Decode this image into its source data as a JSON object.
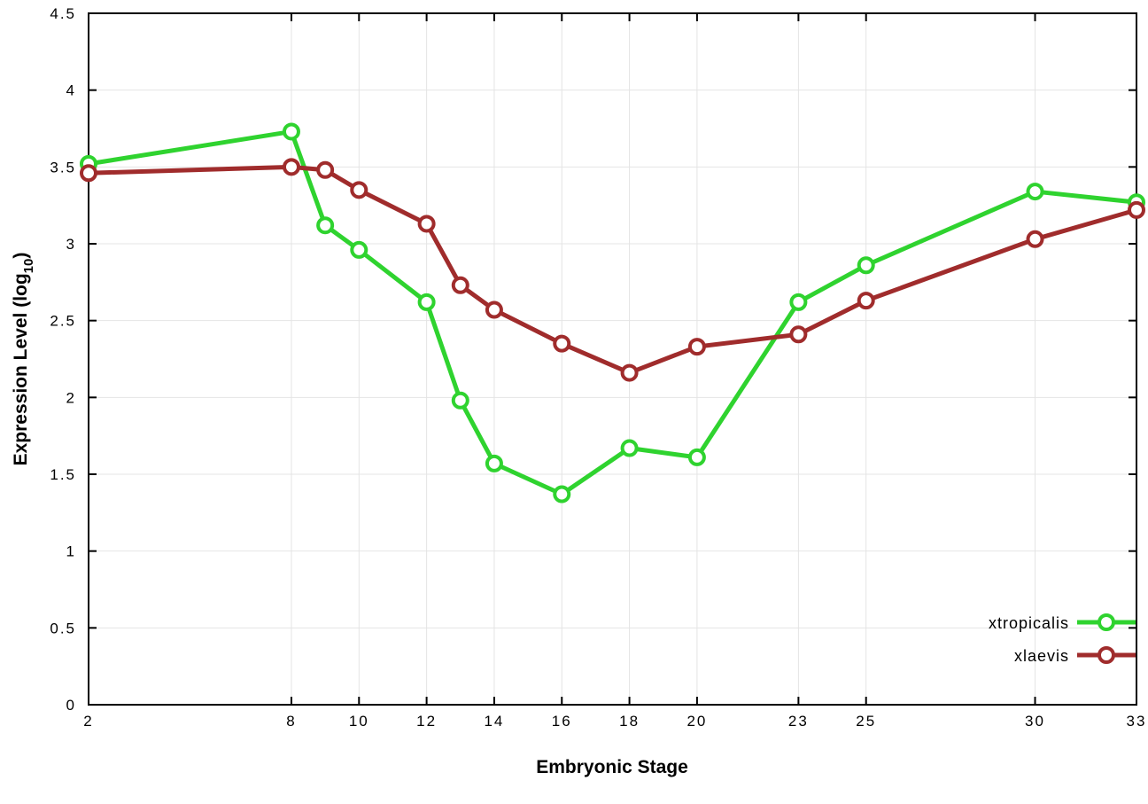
{
  "chart_data": {
    "type": "line",
    "x": [
      2,
      8,
      9,
      10,
      12,
      13,
      14,
      16,
      18,
      20,
      23,
      25,
      30,
      33
    ],
    "series": [
      {
        "name": "xtropicalis",
        "color": "#2fd32f",
        "values": [
          3.52,
          3.73,
          3.12,
          2.96,
          2.62,
          1.98,
          1.57,
          1.37,
          1.67,
          1.61,
          2.62,
          2.86,
          3.34,
          3.27
        ]
      },
      {
        "name": "xlaevis",
        "color": "#a02c2c",
        "values": [
          3.46,
          3.5,
          3.48,
          3.35,
          3.13,
          2.73,
          2.57,
          2.35,
          2.16,
          2.33,
          2.41,
          2.63,
          3.03,
          3.22
        ]
      }
    ],
    "title": "",
    "xlabel": "Embryonic Stage",
    "ylabel": "Expression Level (log10)",
    "xlim": [
      2,
      33
    ],
    "ylim": [
      0,
      4.5
    ],
    "xticks": [
      2,
      8,
      10,
      12,
      14,
      16,
      18,
      20,
      23,
      25,
      30,
      33
    ],
    "yticks": [
      0,
      0.5,
      1,
      1.5,
      2,
      2.5,
      3,
      3.5,
      4,
      4.5
    ],
    "grid": true,
    "legend_position": "bottom-right",
    "marker": "open-circle",
    "background_color": "#ffffff",
    "gridline_color": "#e4e4e4"
  },
  "labels": {
    "x_axis": "Embryonic Stage",
    "y_axis_prefix": "Expression Level (log",
    "y_axis_sub": "10",
    "y_axis_suffix": ")"
  }
}
